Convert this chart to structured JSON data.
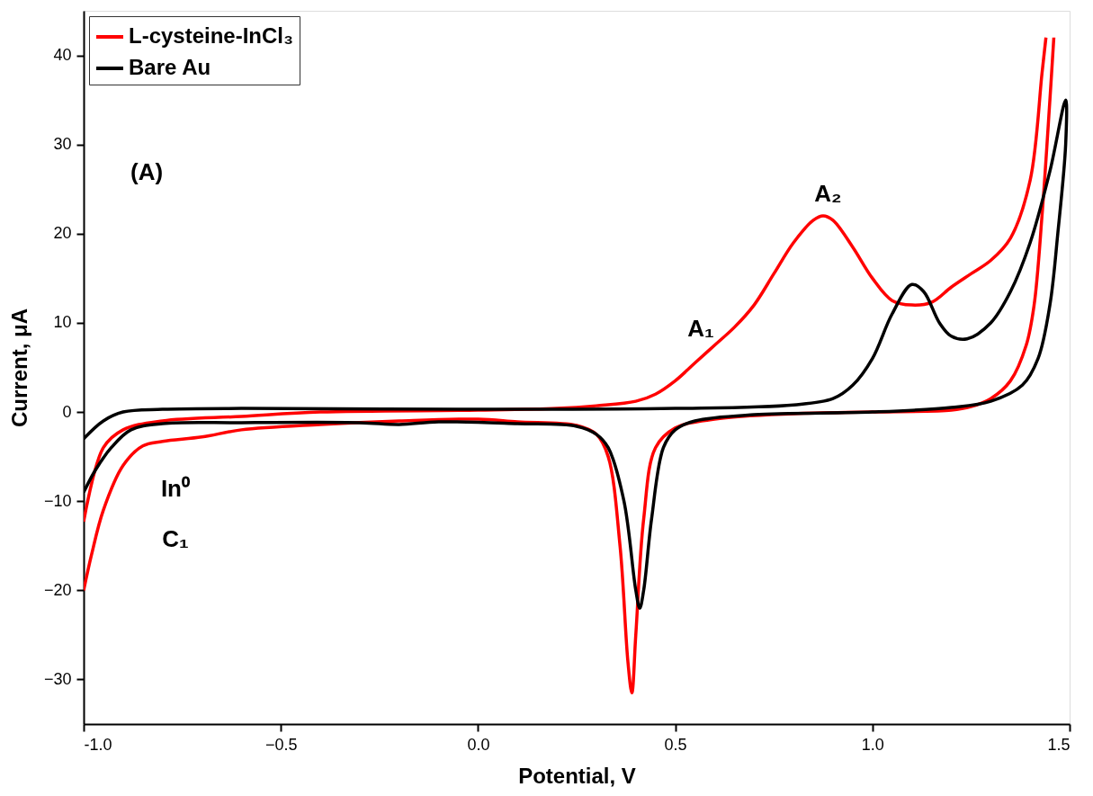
{
  "chart_data": {
    "type": "line",
    "xlabel": "Potential, V",
    "ylabel": "Current, μA",
    "xlim": [
      -1.0,
      1.5
    ],
    "ylim": [
      -35,
      45
    ],
    "xticks": [
      {
        "value": -1.0,
        "label": "-1.0"
      },
      -0.5,
      {
        "value": 0,
        "label": "0.0"
      },
      0.5,
      {
        "value": 1,
        "label": "1.0"
      },
      1.5
    ],
    "yticks": [
      -30,
      -20,
      -10,
      0,
      10,
      20,
      30,
      40
    ],
    "grid": false,
    "legend": "top left",
    "line_style": "solid",
    "marker": "none",
    "annotations": [
      "(A)",
      "A₁",
      "A₂",
      "In⁰",
      "C₁"
    ],
    "series": [
      {
        "name": "L-cysteine-InCl₃",
        "color": "#ff0000",
        "x": [
          -1.0,
          -0.95,
          -0.9,
          -0.8,
          -0.6,
          -0.4,
          0,
          0.2,
          0.3,
          0.4,
          0.45,
          0.5,
          0.55,
          0.6,
          0.65,
          0.7,
          0.75,
          0.8,
          0.85,
          0.875,
          0.9,
          0.95,
          1.0,
          1.05,
          1.1,
          1.15,
          1.2,
          1.25,
          1.3,
          1.35,
          1.4,
          1.43,
          1.44,
          1.45,
          1.46,
          1.45,
          1.43,
          1.41,
          1.39,
          1.35,
          1.3,
          1.25,
          1.2,
          1.0,
          0.8,
          0.6,
          0.5,
          0.45,
          0.42,
          0.4,
          0.39,
          0.38,
          0.36,
          0.33,
          0.3,
          0.25,
          0.1,
          0,
          -0.2,
          -0.4,
          -0.6,
          -0.7,
          -0.8,
          -0.85,
          -0.9,
          -0.95,
          -0.98,
          -1.0
        ],
        "values": [
          -12.3,
          -4,
          -2,
          -1,
          -0.5,
          0,
          0.2,
          0.4,
          0.7,
          1.2,
          2,
          3.5,
          5.5,
          7.5,
          9.5,
          12,
          15.5,
          19,
          21.5,
          22,
          21.5,
          18.5,
          15,
          12.5,
          12,
          12.3,
          14,
          15.5,
          17,
          19.5,
          26,
          38,
          42,
          null,
          42,
          35,
          22,
          12,
          7.5,
          3.5,
          1.5,
          0.6,
          0.2,
          0,
          -0.2,
          -0.8,
          -1.8,
          -4,
          -12,
          -25,
          -31.5,
          -28,
          -15,
          -5,
          -2.5,
          -1.5,
          -1.1,
          -0.8,
          -1,
          -1.4,
          -2,
          -2.8,
          -3.3,
          -3.8,
          -6,
          -11,
          -16,
          -20
        ]
      },
      {
        "name": "Bare Au",
        "color": "#000000",
        "x": [
          -1.0,
          -0.95,
          -0.9,
          -0.8,
          -0.6,
          0,
          0.5,
          0.8,
          0.9,
          0.95,
          1.0,
          1.05,
          1.1,
          1.13,
          1.17,
          1.2,
          1.24,
          1.3,
          1.35,
          1.4,
          1.45,
          1.49,
          1.49,
          1.47,
          1.45,
          1.42,
          1.38,
          1.3,
          1.2,
          1.0,
          0.7,
          0.55,
          0.5,
          0.47,
          0.44,
          0.42,
          0.41,
          0.4,
          0.37,
          0.33,
          0.3,
          0.25,
          0.1,
          -0.1,
          -0.2,
          -0.3,
          -0.6,
          -0.8,
          -0.88,
          -0.93,
          -0.97,
          -1.0
        ],
        "values": [
          -3,
          -1,
          0,
          0.3,
          0.4,
          0.3,
          0.4,
          0.8,
          1.5,
          3,
          6,
          11,
          14.3,
          13.5,
          10,
          8.5,
          8.2,
          10,
          13.5,
          19,
          27,
          35,
          30,
          20,
          12,
          6,
          3,
          1.2,
          0.5,
          0,
          -0.3,
          -1,
          -2,
          -4,
          -12,
          -20,
          -22,
          -20,
          -10,
          -4,
          -2.5,
          -1.6,
          -1.3,
          -1.1,
          -1.4,
          -1.2,
          -1.2,
          -1.3,
          -2,
          -4,
          -6.5,
          -9
        ]
      }
    ]
  }
}
